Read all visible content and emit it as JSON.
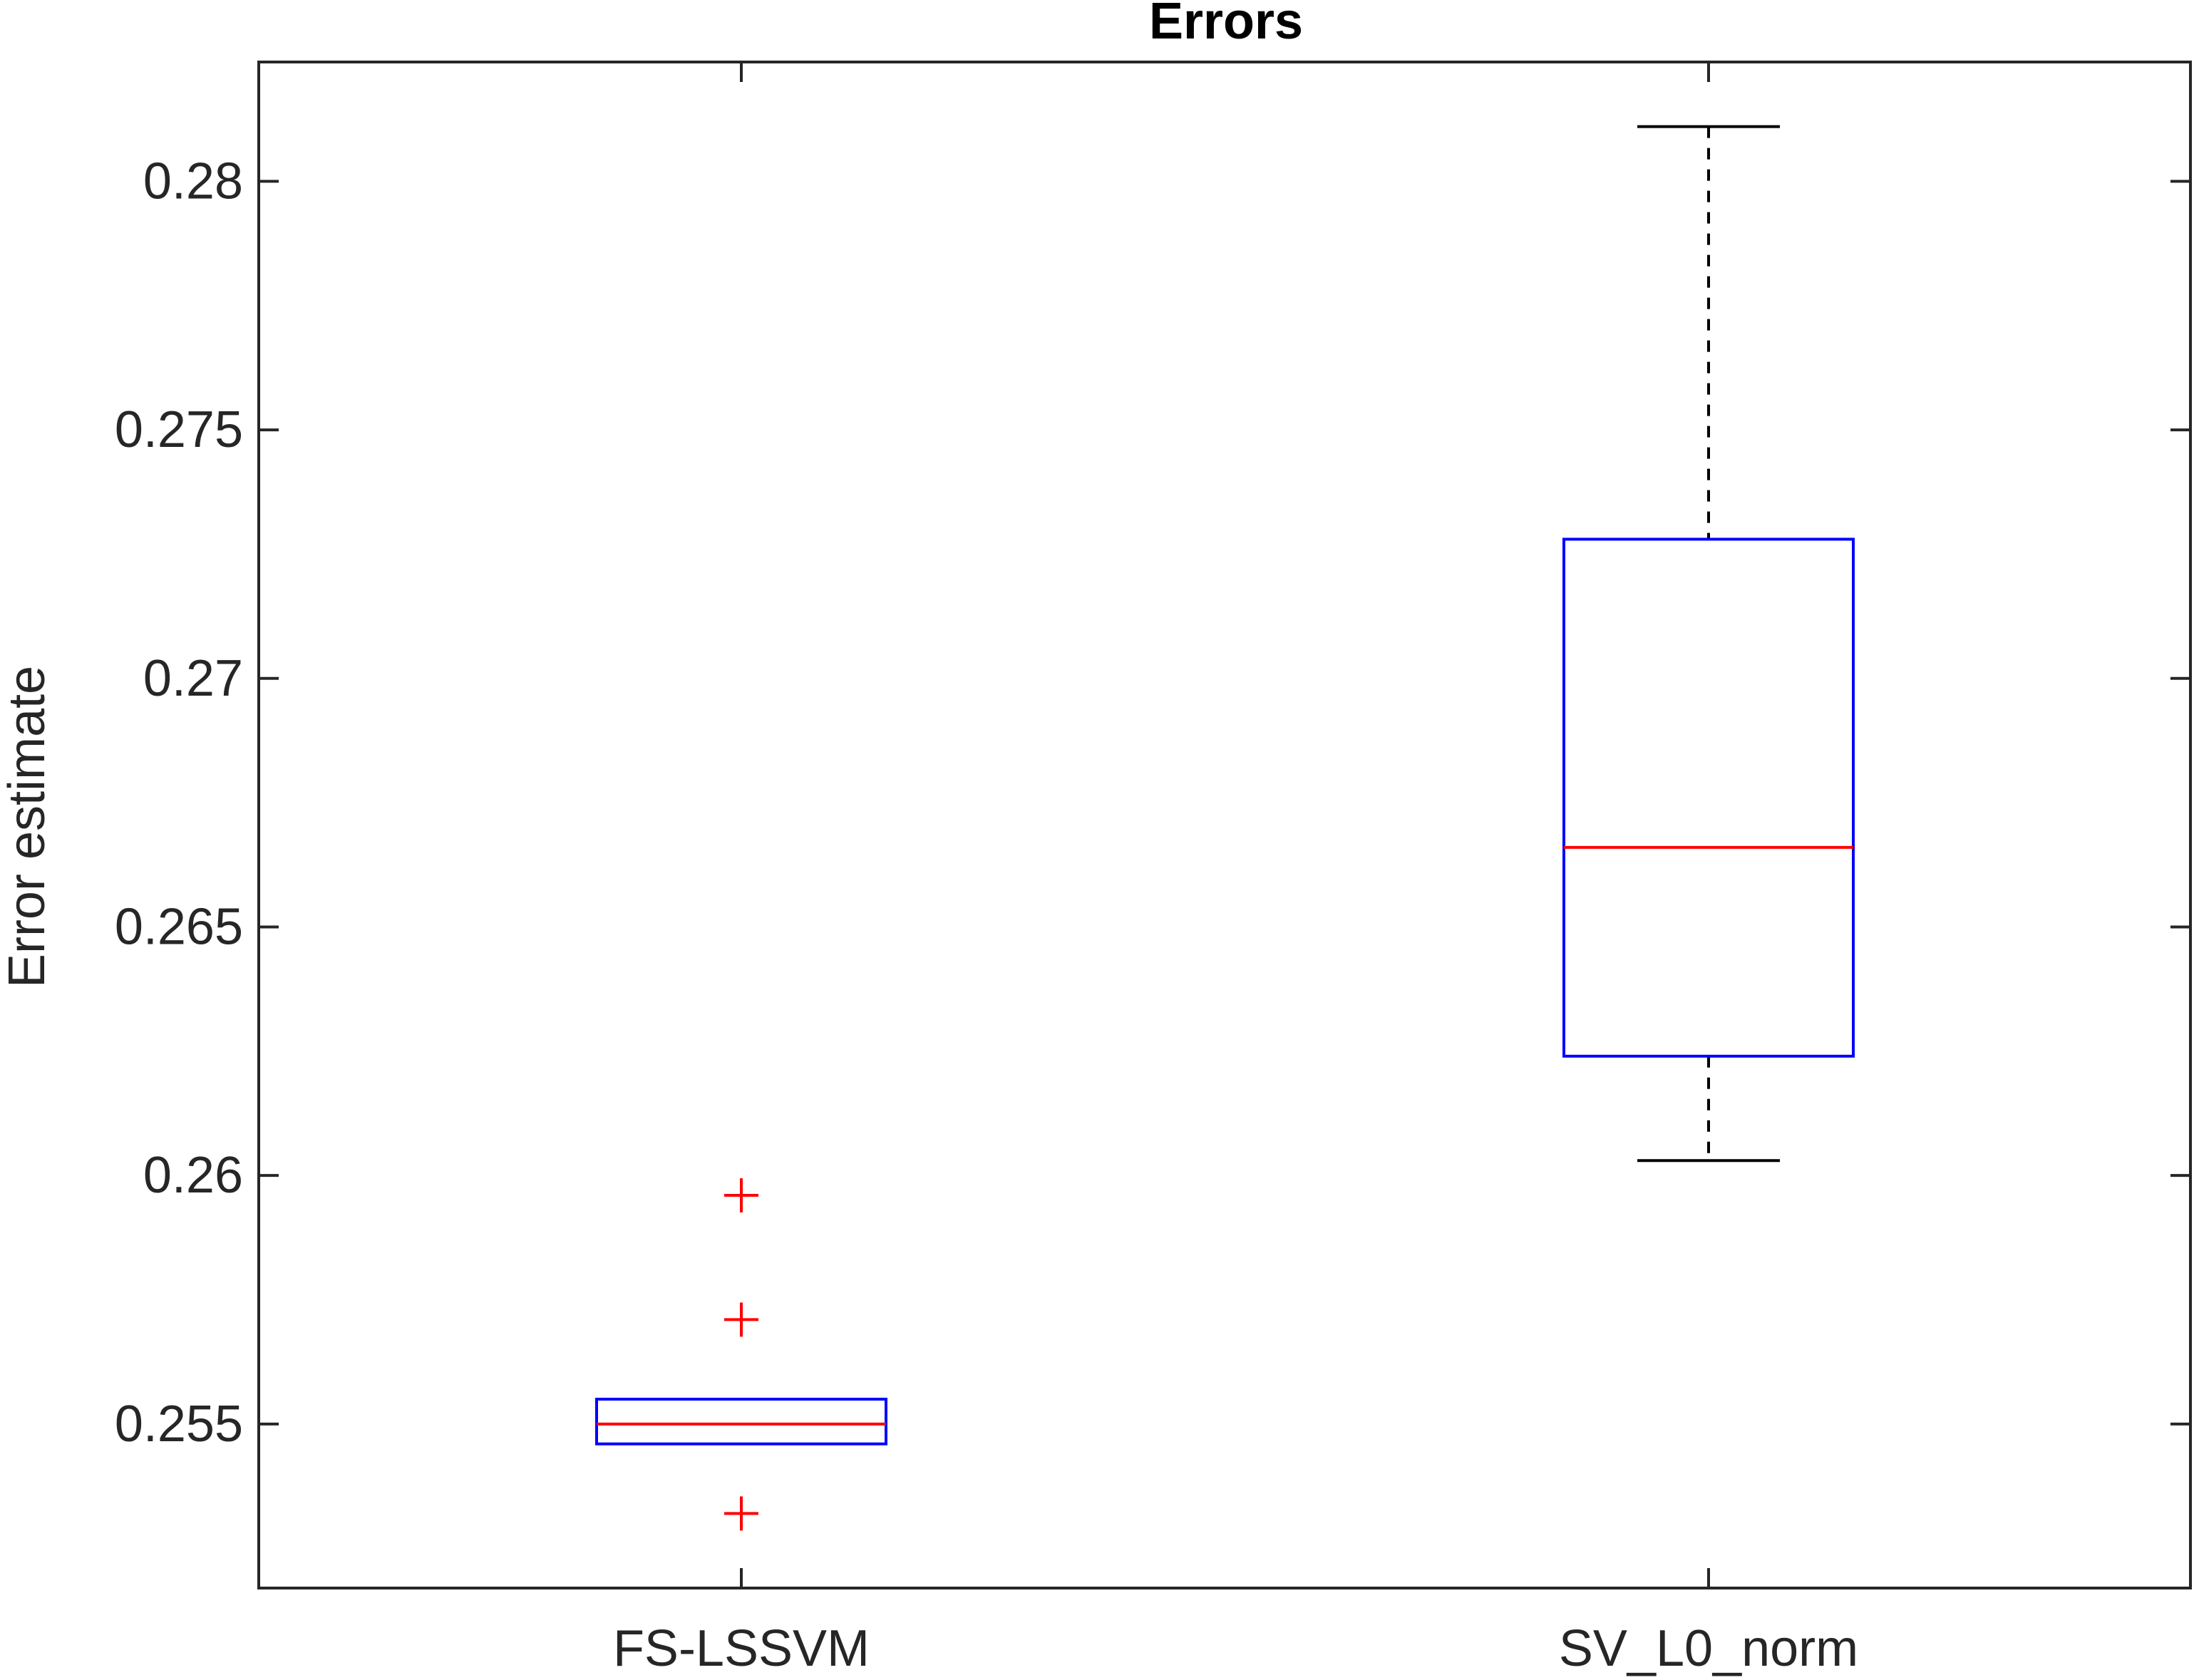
{
  "chart_data": {
    "type": "box",
    "title": "Errors",
    "xlabel": "",
    "ylabel": "Error estimate",
    "categories": [
      "FS-LSSVM",
      "SV_L0_norm"
    ],
    "ylim": [
      0.2517,
      0.2824
    ],
    "yticks": [
      0.255,
      0.26,
      0.265,
      0.27,
      0.275,
      0.28
    ],
    "ytick_labels": [
      "0.255",
      "0.26",
      "0.265",
      "0.27",
      "0.275",
      "0.28"
    ],
    "grid": false,
    "boxes": [
      {
        "category": "FS-LSSVM",
        "whisker_low": 0.2546,
        "q1": 0.2546,
        "median": 0.255,
        "q3": 0.2555,
        "whisker_high": 0.2555,
        "outliers": [
          0.2596,
          0.2571,
          0.2532
        ]
      },
      {
        "category": "SV_L0_norm",
        "whisker_low": 0.2603,
        "q1": 0.2624,
        "median": 0.2666,
        "q3": 0.2728,
        "whisker_high": 0.2811,
        "outliers": []
      }
    ],
    "colors": {
      "box": "#0000ff",
      "median": "#ff0000",
      "outlier": "#ff0000",
      "whisker": "#000000",
      "axis": "#262626"
    }
  }
}
